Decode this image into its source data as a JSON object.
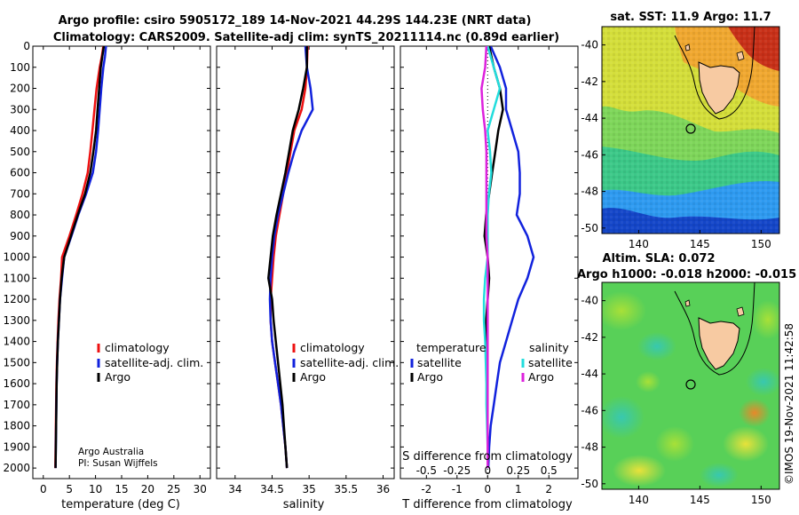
{
  "title": {
    "line1": "Argo profile: csiro 5905172_189 14-Nov-2021 44.29S 144.23E (NRT data)",
    "line2": "Climatology: CARS2009. Satellite-adj clim: synTS_20211114.nc (0.89d earlier)"
  },
  "credit": {
    "line1": "Argo Australia",
    "line2": "PI: Susan Wijffels"
  },
  "timestamp": "©IMOS 19-Nov-2021 11:42:58",
  "colors": {
    "climatology": "#ee1111",
    "satellite": "#1122dd",
    "argo": "#000000",
    "sat_cyan": "#22dddd",
    "argo_magenta": "#dd22dd"
  },
  "chart_data": [
    {
      "name": "temperature-panel",
      "type": "line",
      "xlabel": "temperature (deg C)",
      "ylabel": "",
      "xlim": [
        -2,
        32
      ],
      "ylim": [
        2050,
        0
      ],
      "xticks": [
        0,
        5,
        10,
        15,
        20,
        25,
        30
      ],
      "yticks": [
        0,
        100,
        200,
        300,
        400,
        500,
        600,
        700,
        800,
        900,
        1000,
        1100,
        1200,
        1300,
        1400,
        1500,
        1600,
        1700,
        1800,
        1900,
        2000
      ],
      "legend": [
        "climatology",
        "satellite-adj. clim.",
        "Argo"
      ],
      "series": [
        {
          "name": "climatology",
          "color_key": "climatology",
          "x": [
            11.5,
            11.2,
            10.8,
            10.2,
            9.8,
            9.4,
            9.0,
            8.5,
            7.5,
            6.3,
            5.0,
            3.6,
            3.4,
            3.1,
            2.9,
            2.75,
            2.6,
            2.5,
            2.45,
            2.4,
            2.35,
            2.3
          ],
          "y": [
            0,
            50,
            100,
            200,
            300,
            400,
            500,
            600,
            700,
            800,
            900,
            1000,
            1100,
            1200,
            1300,
            1400,
            1500,
            1600,
            1700,
            1800,
            1900,
            2000
          ]
        },
        {
          "name": "satellite-adj. clim.",
          "color_key": "satellite",
          "x": [
            12.0,
            11.8,
            11.5,
            11.1,
            10.8,
            10.5,
            10.1,
            9.5,
            8.2,
            6.7,
            5.4,
            4.0,
            3.6,
            3.2,
            3.0,
            2.8,
            2.65,
            2.55,
            2.5,
            2.45,
            2.4,
            2.35
          ],
          "y": [
            0,
            50,
            100,
            200,
            300,
            400,
            500,
            600,
            700,
            800,
            900,
            1000,
            1100,
            1200,
            1300,
            1400,
            1500,
            1600,
            1700,
            1800,
            1900,
            2000
          ]
        },
        {
          "name": "Argo",
          "color_key": "argo",
          "x": [
            11.6,
            11.3,
            11.0,
            10.7,
            10.4,
            10.1,
            9.6,
            9.0,
            8.0,
            6.6,
            5.3,
            4.0,
            3.5,
            3.2,
            3.0,
            2.8,
            2.65,
            2.55,
            2.5,
            2.45,
            2.4,
            2.35
          ],
          "y": [
            0,
            50,
            100,
            200,
            300,
            400,
            500,
            600,
            700,
            800,
            900,
            1000,
            1100,
            1200,
            1300,
            1400,
            1500,
            1600,
            1700,
            1800,
            1900,
            2000
          ]
        }
      ]
    },
    {
      "name": "salinity-panel",
      "type": "line",
      "xlabel": "salinity",
      "xlim": [
        33.75,
        36.15
      ],
      "ylim": [
        2050,
        0
      ],
      "xticks": [
        34,
        34.5,
        35,
        35.5,
        36
      ],
      "legend": [
        "climatology",
        "satellite-adj. clim.",
        "Argo"
      ],
      "series": [
        {
          "name": "climatology",
          "color_key": "climatology",
          "x": [
            34.98,
            34.97,
            34.95,
            34.9,
            34.8,
            34.75,
            34.7,
            34.65,
            34.6,
            34.55,
            34.52,
            34.5,
            34.48,
            34.48,
            34.5,
            34.54,
            34.58,
            34.62,
            34.65,
            34.68,
            34.7
          ],
          "y": [
            0,
            100,
            200,
            300,
            400,
            500,
            600,
            700,
            800,
            900,
            1000,
            1100,
            1200,
            1300,
            1400,
            1500,
            1600,
            1700,
            1800,
            1900,
            2000
          ]
        },
        {
          "name": "satellite-adj. clim.",
          "color_key": "satellite",
          "x": [
            34.95,
            34.97,
            35.02,
            35.05,
            34.9,
            34.8,
            34.72,
            34.65,
            34.58,
            34.53,
            34.5,
            34.48,
            34.47,
            34.48,
            34.5,
            34.54,
            34.58,
            34.62,
            34.65,
            34.68,
            34.7
          ],
          "y": [
            0,
            100,
            200,
            300,
            400,
            500,
            600,
            700,
            800,
            900,
            1000,
            1100,
            1200,
            1300,
            1400,
            1500,
            1600,
            1700,
            1800,
            1900,
            2000
          ]
        },
        {
          "name": "Argo",
          "color_key": "argo",
          "x": [
            34.97,
            34.97,
            34.92,
            34.86,
            34.78,
            34.73,
            34.68,
            34.62,
            34.56,
            34.51,
            34.48,
            34.45,
            34.5,
            34.52,
            34.55,
            34.58,
            34.61,
            34.64,
            34.66,
            34.68,
            34.7
          ],
          "y": [
            0,
            100,
            200,
            300,
            400,
            500,
            600,
            700,
            800,
            900,
            1000,
            1100,
            1200,
            1300,
            1400,
            1500,
            1600,
            1700,
            1800,
            1900,
            2000
          ]
        }
      ]
    },
    {
      "name": "difference-panel",
      "type": "line",
      "xlabel": "T difference from climatology",
      "xlabel_top": "S difference from climatology",
      "xlim": [
        -2.85,
        2.95
      ],
      "ylim": [
        2050,
        0
      ],
      "xticks": [
        -2,
        -1,
        0,
        1,
        2
      ],
      "sticks": [
        -0.5,
        -0.25,
        0,
        0.25,
        0.5
      ],
      "s_scale": 4,
      "legend_temperature_title": "temperature",
      "legend_temperature": [
        "satellite",
        "Argo"
      ],
      "legend_salinity_title": "salinity",
      "legend_salinity": [
        "satellite",
        "Argo"
      ],
      "series": [
        {
          "name": "temperature satellite",
          "color_key": "satellite",
          "x": [
            0.1,
            0.4,
            0.6,
            0.6,
            0.8,
            1.0,
            1.05,
            1.05,
            0.95,
            1.3,
            1.5,
            1.3,
            1.0,
            0.8,
            0.6,
            0.4,
            0.3,
            0.2,
            0.1,
            0.05,
            0.02
          ],
          "y": [
            0,
            100,
            200,
            300,
            400,
            500,
            600,
            700,
            800,
            900,
            1000,
            1100,
            1200,
            1300,
            1400,
            1500,
            1600,
            1700,
            1800,
            1900,
            2000
          ]
        },
        {
          "name": "temperature Argo",
          "color_key": "argo",
          "x": [
            0.05,
            0.2,
            0.4,
            0.5,
            0.35,
            0.25,
            0.15,
            0.05,
            -0.05,
            -0.1,
            0.0,
            0.05,
            0.0,
            -0.05,
            -0.05,
            -0.03,
            -0.02,
            -0.01,
            0.0,
            0.0,
            0.0
          ],
          "y": [
            0,
            100,
            200,
            300,
            400,
            500,
            600,
            700,
            800,
            900,
            1000,
            1100,
            1200,
            1300,
            1400,
            1500,
            1600,
            1700,
            1800,
            1900,
            2000
          ]
        },
        {
          "name": "salinity satellite",
          "color_key": "sat_cyan",
          "x": [
            0.0,
            0.05,
            0.1,
            0.05,
            0.0,
            0.02,
            0.03,
            0.01,
            0.0,
            0.0,
            0.0,
            -0.02,
            -0.03,
            -0.03,
            -0.02,
            -0.015,
            -0.01,
            -0.01,
            -0.005,
            0.0,
            0.0
          ],
          "y": [
            0,
            100,
            200,
            300,
            400,
            500,
            600,
            700,
            800,
            900,
            1000,
            1100,
            1200,
            1300,
            1400,
            1500,
            1600,
            1700,
            1800,
            1900,
            2000
          ]
        },
        {
          "name": "salinity Argo",
          "color_key": "argo_magenta",
          "x": [
            -0.01,
            -0.02,
            -0.05,
            -0.04,
            -0.02,
            -0.01,
            -0.01,
            -0.01,
            -0.01,
            -0.01,
            0.0,
            0.0,
            0.0,
            0.0,
            0.0,
            0.0,
            0.0,
            0.0,
            0.0,
            0.0,
            0.0
          ],
          "y": [
            0,
            100,
            200,
            300,
            400,
            500,
            600,
            700,
            800,
            900,
            1000,
            1100,
            1200,
            1300,
            1400,
            1500,
            1600,
            1700,
            1800,
            1900,
            2000
          ]
        }
      ]
    },
    {
      "name": "sst-map",
      "type": "heatmap",
      "title": "sat. SST: 11.9 Argo: 11.7",
      "xlim": [
        137,
        151.5
      ],
      "ylim": [
        -50.3,
        -39
      ],
      "xticks": [
        140,
        145,
        150
      ],
      "yticks": [
        -40,
        -42,
        -44,
        -46,
        -48,
        -50
      ],
      "argo_position": {
        "lon": 144.23,
        "lat": -44.29
      }
    },
    {
      "name": "sla-map",
      "type": "heatmap",
      "title_line1": "Altim. SLA: 0.072",
      "title_line2": "Argo h1000: -0.018 h2000: -0.015",
      "xlim": [
        137,
        151.5
      ],
      "ylim": [
        -50.3,
        -39
      ],
      "xticks": [
        140,
        145,
        150
      ],
      "yticks": [
        -40,
        -42,
        -44,
        -46,
        -48,
        -50
      ],
      "argo_position": {
        "lon": 144.23,
        "lat": -44.29
      }
    }
  ]
}
